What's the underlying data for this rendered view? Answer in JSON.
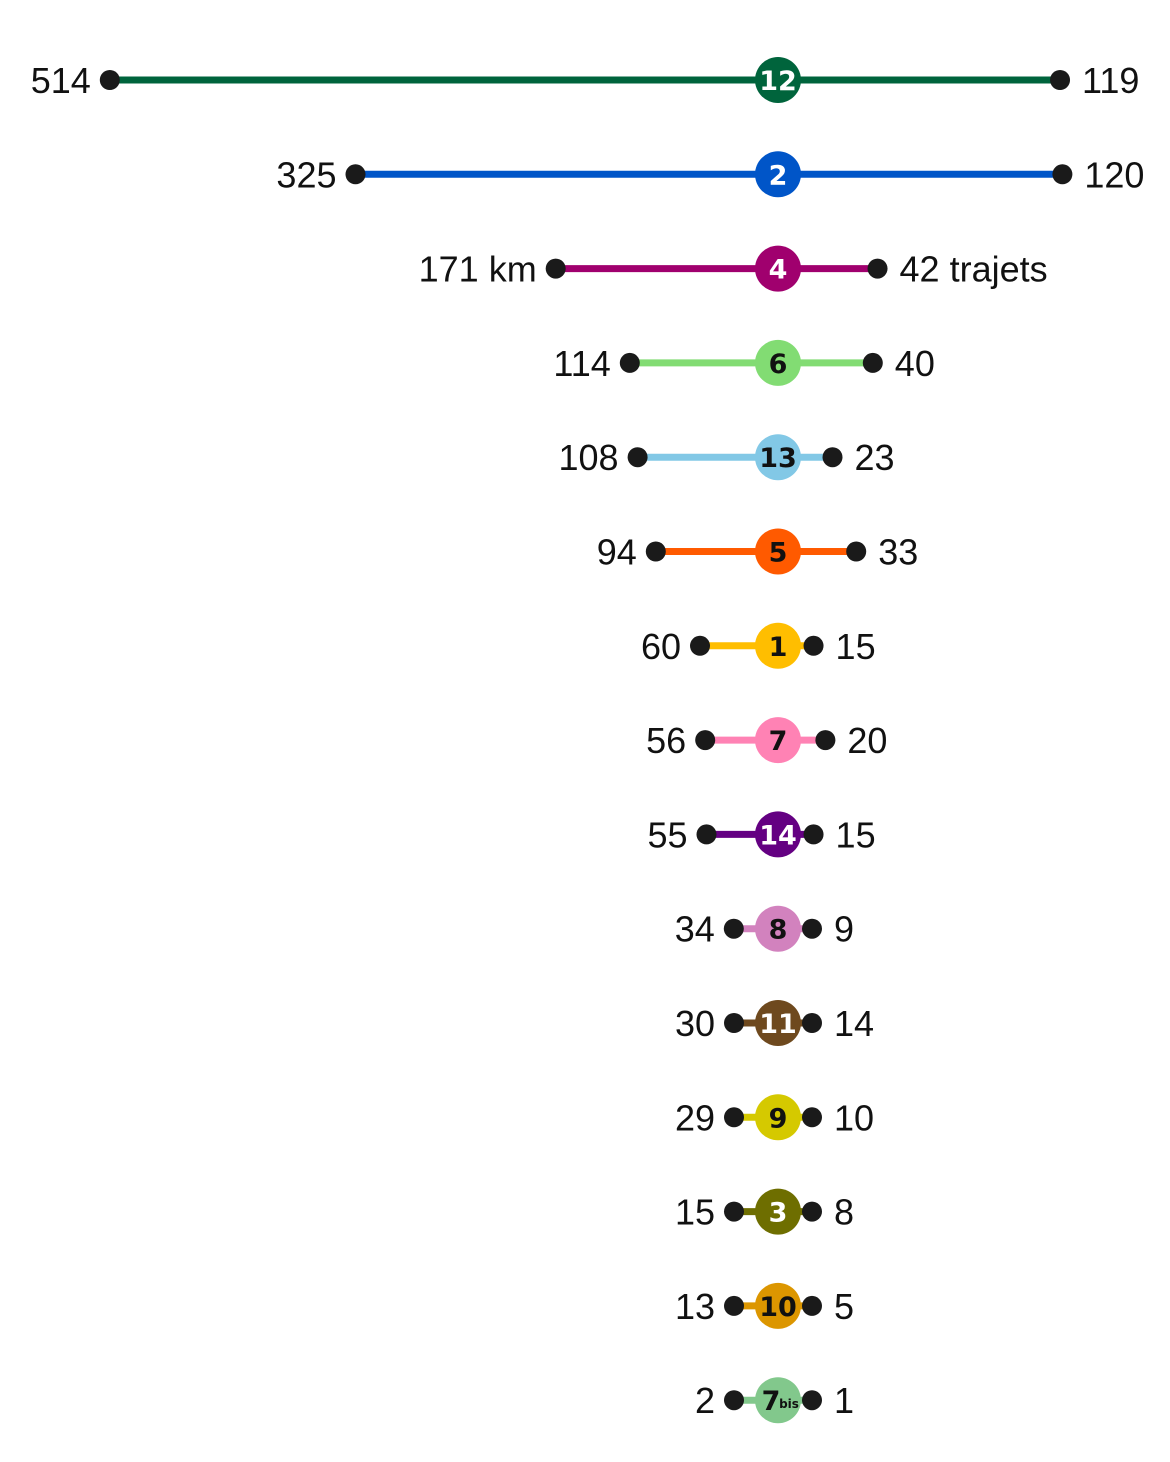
{
  "chart_data": {
    "type": "dumbbell",
    "left_unit": "km",
    "right_unit": "trajets",
    "rows": [
      {
        "line": "12",
        "color": "#00643c",
        "text_color": "#ffffff",
        "left": 514,
        "right": 119,
        "left_label": "514",
        "right_label": "119"
      },
      {
        "line": "2",
        "color": "#0055c8",
        "text_color": "#ffffff",
        "left": 325,
        "right": 120,
        "left_label": "325",
        "right_label": "120"
      },
      {
        "line": "4",
        "color": "#a0006e",
        "text_color": "#ffffff",
        "left": 171,
        "right": 42,
        "left_label": "171 km",
        "right_label": "42 trajets"
      },
      {
        "line": "6",
        "color": "#82dc73",
        "text_color": "#111111",
        "left": 114,
        "right": 40,
        "left_label": "114",
        "right_label": "40"
      },
      {
        "line": "13",
        "color": "#82c8e6",
        "text_color": "#111111",
        "left": 108,
        "right": 23,
        "left_label": "108",
        "right_label": "23"
      },
      {
        "line": "5",
        "color": "#ff5a00",
        "text_color": "#111111",
        "left": 94,
        "right": 33,
        "left_label": "94",
        "right_label": "33"
      },
      {
        "line": "1",
        "color": "#ffbe00",
        "text_color": "#111111",
        "left": 60,
        "right": 15,
        "left_label": "60",
        "right_label": "15"
      },
      {
        "line": "7",
        "color": "#ff82b4",
        "text_color": "#111111",
        "left": 56,
        "right": 20,
        "left_label": "56",
        "right_label": "20"
      },
      {
        "line": "14",
        "color": "#640082",
        "text_color": "#ffffff",
        "left": 55,
        "right": 15,
        "left_label": "55",
        "right_label": "15"
      },
      {
        "line": "8",
        "color": "#d282be",
        "text_color": "#111111",
        "left": 34,
        "right": 9,
        "left_label": "34",
        "right_label": "9"
      },
      {
        "line": "11",
        "color": "#6e491e",
        "text_color": "#ffffff",
        "left": 30,
        "right": 14,
        "left_label": "30",
        "right_label": "14"
      },
      {
        "line": "9",
        "color": "#d5c900",
        "text_color": "#111111",
        "left": 29,
        "right": 10,
        "left_label": "29",
        "right_label": "10"
      },
      {
        "line": "3",
        "color": "#6e6e00",
        "text_color": "#ffffff",
        "left": 15,
        "right": 8,
        "left_label": "15",
        "right_label": "8"
      },
      {
        "line": "10",
        "color": "#dc9600",
        "text_color": "#111111",
        "left": 13,
        "right": 5,
        "left_label": "13",
        "right_label": "5"
      },
      {
        "line": "7",
        "suffix": "bis",
        "color": "#82c88c",
        "text_color": "#111111",
        "left": 2,
        "right": 1,
        "left_label": "2",
        "right_label": "1"
      }
    ]
  }
}
